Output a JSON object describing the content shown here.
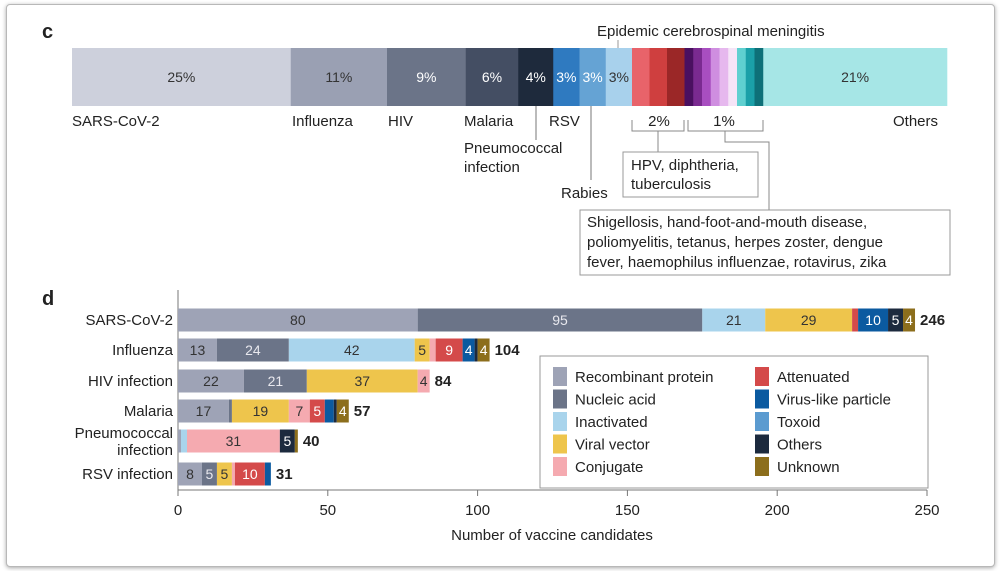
{
  "chart_data": [
    {
      "type": "bar",
      "panel_label": "c",
      "orientation": "horizontal-stacked-100%",
      "segments": [
        {
          "name": "SARS-CoV-2",
          "value": 25,
          "label": "25%",
          "color": "#cdd0dc"
        },
        {
          "name": "Influenza",
          "value": 11,
          "label": "11%",
          "color": "#9aa0b3"
        },
        {
          "name": "HIV",
          "value": 9,
          "label": "9%",
          "color": "#6b7488"
        },
        {
          "name": "Malaria",
          "value": 6,
          "label": "6%",
          "color": "#444e63"
        },
        {
          "name": "Pneumococcal infection",
          "value": 4,
          "label": "4%",
          "color": "#1e2a3c"
        },
        {
          "name": "RSV",
          "value": 3,
          "label": "3%",
          "color": "#2f7ac0"
        },
        {
          "name": "Rabies",
          "value": 3,
          "label": "3%",
          "color": "#65a3d4"
        },
        {
          "name": "Epidemic cerebrospinal meningitis",
          "value": 3,
          "label": "3%",
          "color": "#a8d1ec"
        },
        {
          "name": "HPV",
          "value": 2,
          "label": "",
          "color": "#e8636a"
        },
        {
          "name": "diphtheria",
          "value": 2,
          "label": "",
          "color": "#cf3f3f"
        },
        {
          "name": "tuberculosis",
          "value": 2,
          "label": "",
          "color": "#9b2727"
        },
        {
          "name": "",
          "value": 1,
          "label": "",
          "color": "#4a1060"
        },
        {
          "name": "",
          "value": 1,
          "label": "",
          "color": "#7a2a90"
        },
        {
          "name": "",
          "value": 1,
          "label": "",
          "color": "#a84ec0"
        },
        {
          "name": "",
          "value": 1,
          "label": "",
          "color": "#cf8ee0"
        },
        {
          "name": "",
          "value": 1,
          "label": "",
          "color": "#e6b8ee"
        },
        {
          "name": "",
          "value": 1,
          "label": "",
          "color": "#f5e4f7"
        },
        {
          "name": "",
          "value": 1,
          "label": "",
          "color": "#5fd0d0"
        },
        {
          "name": "",
          "value": 1,
          "label": "",
          "color": "#1ba0a8"
        },
        {
          "name": "",
          "value": 1,
          "label": "",
          "color": "#0e7078"
        },
        {
          "name": "Others",
          "value": 21,
          "label": "21%",
          "color": "#a6e6e6"
        }
      ],
      "category_labels": {
        "sars": "SARS-CoV-2",
        "influenza": "Influenza",
        "hiv": "HIV",
        "malaria": "Malaria",
        "rsv": "RSV",
        "pneumo1": "Pneumococcal",
        "pneumo2": "infection",
        "rabies": "Rabies",
        "meningitis": "Epidemic cerebrospinal meningitis",
        "others": "Others"
      },
      "group_labels": {
        "two_pct": "2%",
        "one_pct": "1%"
      },
      "callouts": {
        "two_pct": [
          "HPV, diphtheria,",
          "tuberculosis"
        ],
        "one_pct": [
          "Shigellosis, hand-foot-and-mouth disease,",
          "poliomyelitis, tetanus, herpes zoster, dengue",
          "fever, haemophilus influenzae, rotavirus, zika"
        ]
      }
    },
    {
      "type": "bar",
      "panel_label": "d",
      "orientation": "horizontal-stacked",
      "xlabel": "Number of vaccine candidates",
      "xlim": [
        0,
        250
      ],
      "xticks": [
        0,
        50,
        100,
        150,
        200,
        250
      ],
      "categories": [
        "SARS-CoV-2",
        "Influenza",
        "HIV infection",
        "Malaria",
        "Pneumococcal infection",
        "RSV infection"
      ],
      "totals": [
        246,
        104,
        84,
        57,
        40,
        31
      ],
      "legend_position": "right",
      "series": [
        {
          "name": "Recombinant protein",
          "color": "#9ea3b6",
          "values": [
            80,
            13,
            22,
            17,
            1,
            8
          ]
        },
        {
          "name": "Nucleic acid",
          "color": "#6b7488",
          "values": [
            95,
            24,
            21,
            1,
            0,
            5
          ]
        },
        {
          "name": "Inactivated",
          "color": "#a9d4ec",
          "values": [
            21,
            42,
            0,
            0,
            2,
            0
          ]
        },
        {
          "name": "Viral vector",
          "color": "#eec54c",
          "values": [
            29,
            5,
            37,
            19,
            0,
            5
          ]
        },
        {
          "name": "Conjugate",
          "color": "#f5aab0",
          "values": [
            0,
            2,
            4,
            7,
            31,
            1
          ]
        },
        {
          "name": "Attenuated",
          "color": "#d44a4a",
          "values": [
            2,
            9,
            0,
            5,
            0,
            10
          ]
        },
        {
          "name": "Virus-like particle",
          "color": "#0b5aa0",
          "values": [
            10,
            4,
            0,
            3,
            0,
            2
          ]
        },
        {
          "name": "Toxoid",
          "color": "#5b9bd0",
          "values": [
            0,
            0,
            0,
            0,
            0,
            0
          ]
        },
        {
          "name": "Others",
          "color": "#1c2a3e",
          "values": [
            5,
            1,
            0,
            1,
            5,
            0
          ]
        },
        {
          "name": "Unknown",
          "color": "#8c6e1c",
          "values": [
            4,
            4,
            0,
            4,
            1,
            0
          ]
        }
      ]
    }
  ]
}
